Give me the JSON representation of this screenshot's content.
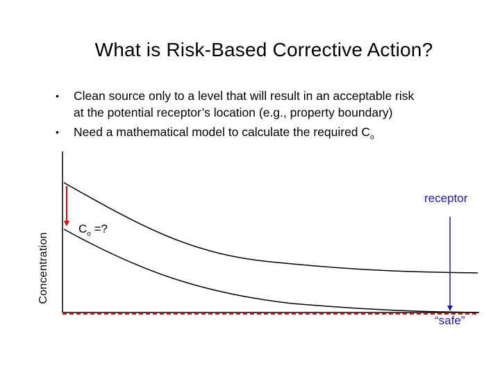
{
  "slide": {
    "title": "What is Risk-Based Corrective Action?",
    "bullets": [
      {
        "symbol": "•",
        "line1": "Clean source only to a level that will result in an acceptable risk",
        "line2": "at the potential receptor’s location (e.g.,  property boundary)"
      },
      {
        "symbol": "•",
        "text": "Need a mathematical model to calculate the required C",
        "subscript": "o"
      }
    ]
  },
  "diagram": {
    "y_axis_label": "Concentration",
    "receptor_label": "receptor",
    "co_label_main": "C",
    "co_label_sub": "o",
    "co_label_suffix": " =?",
    "safe_label": "“safe”",
    "colors": {
      "axis": "#000000",
      "curves": "#000000",
      "reduction_arrow": "#e00000",
      "safe_line": "#e00000",
      "receptor_arrow": "#1a1aa8"
    }
  }
}
